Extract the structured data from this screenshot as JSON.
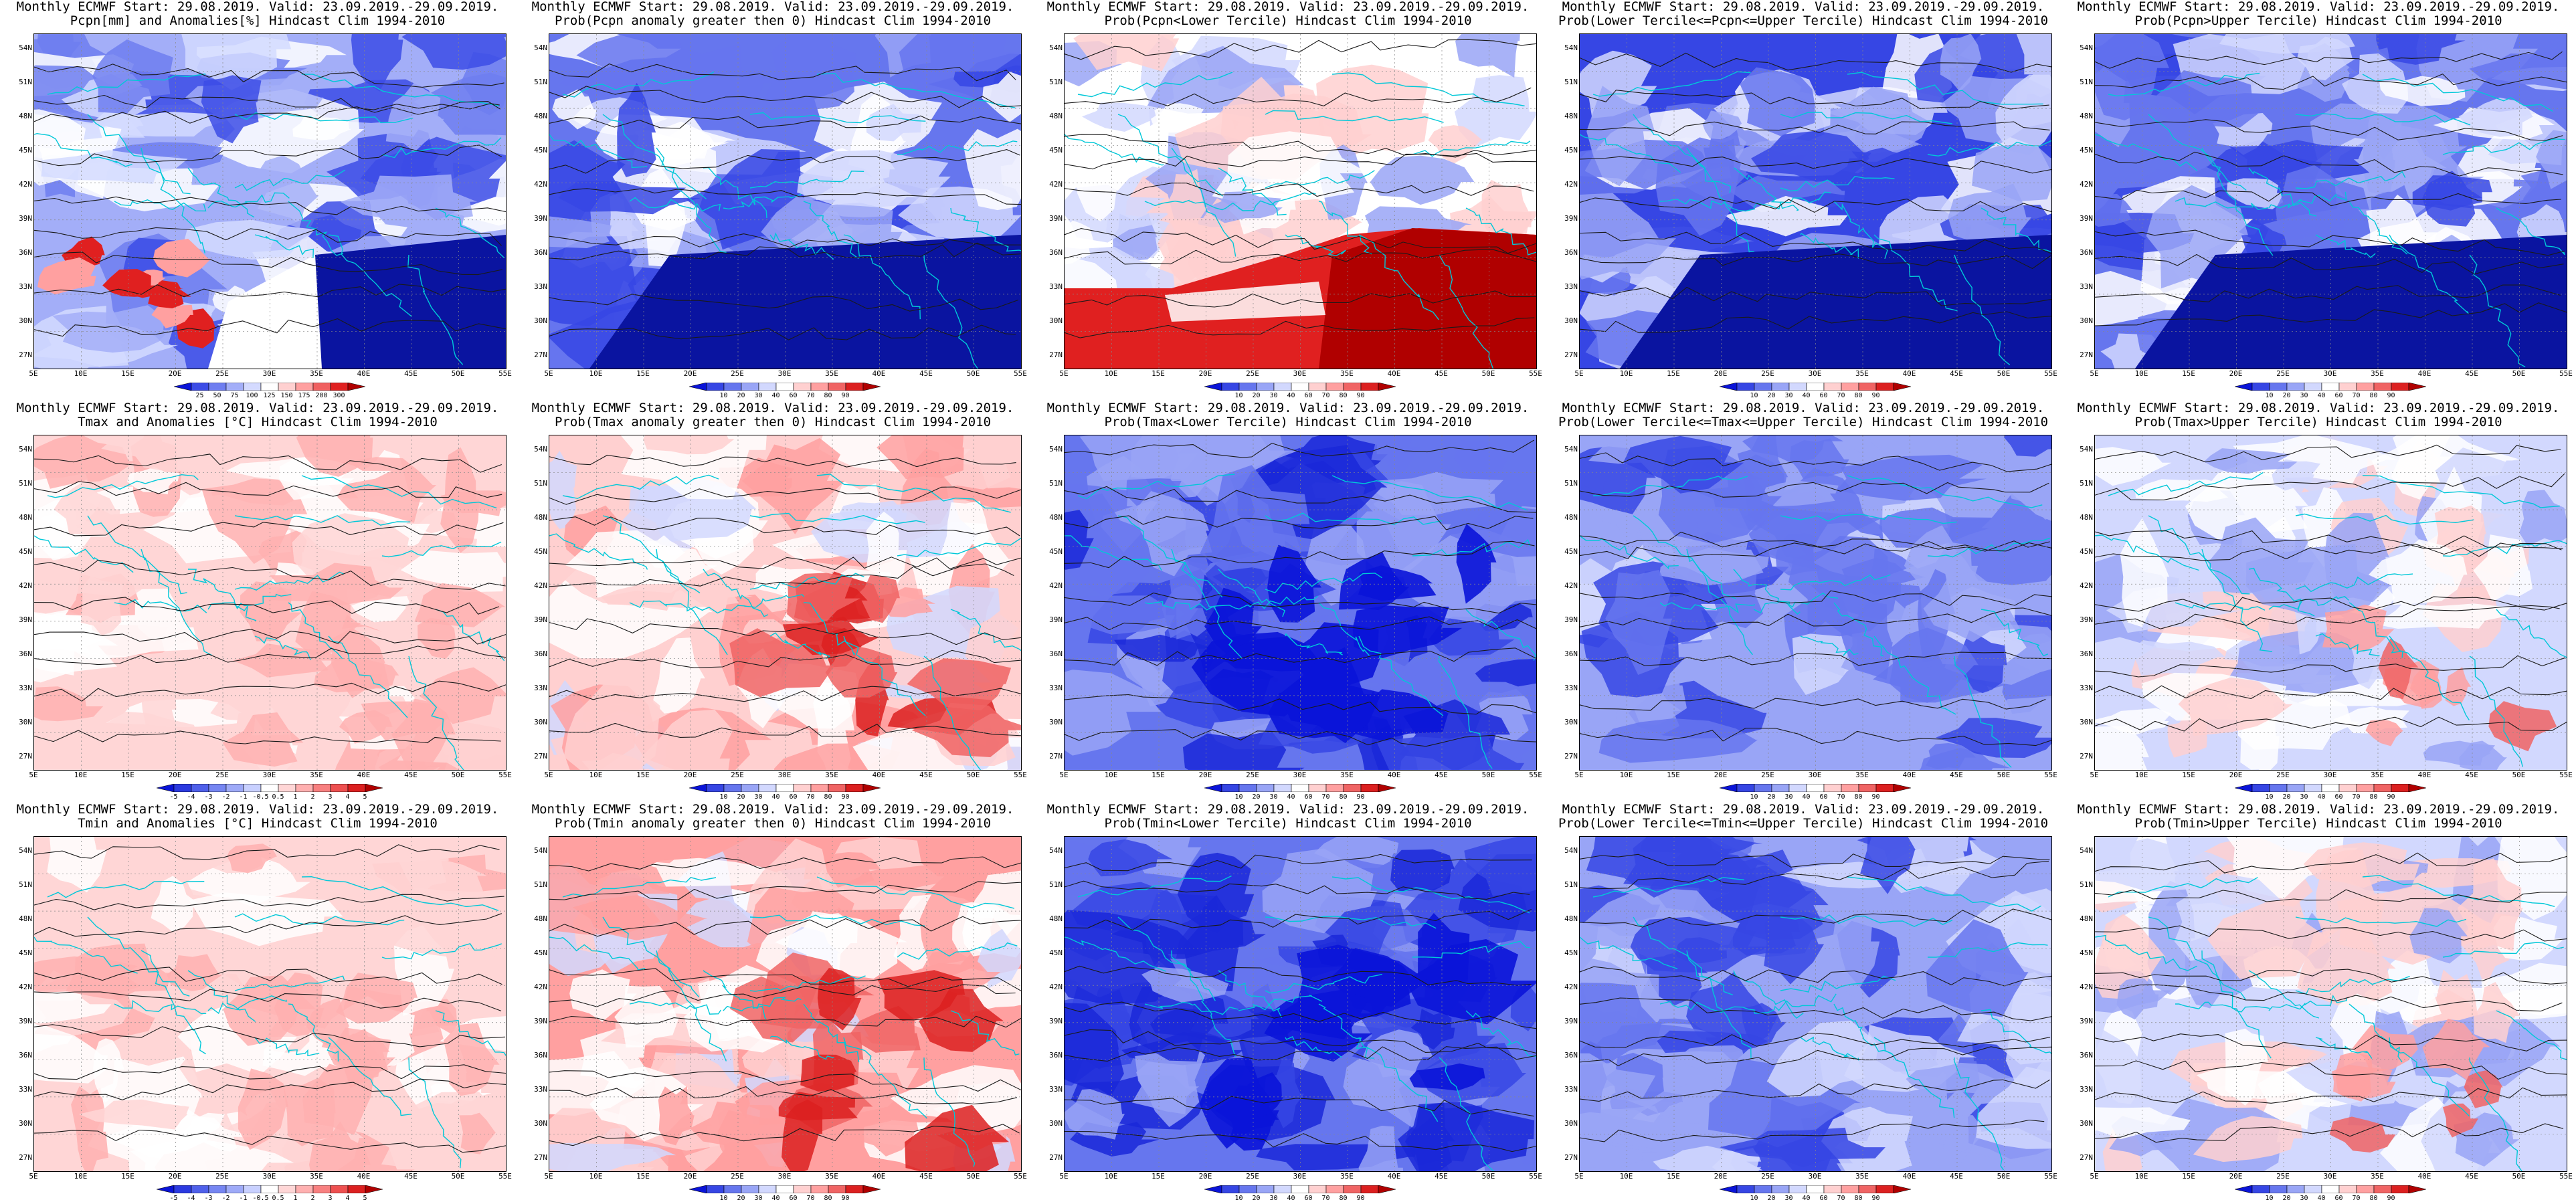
{
  "figure": {
    "latitude_ticks": [
      "54N",
      "51N",
      "48N",
      "45N",
      "42N",
      "39N",
      "36N",
      "33N",
      "30N",
      "27N"
    ],
    "longitude_ticks": [
      "5E",
      "10E",
      "15E",
      "20E",
      "25E",
      "30E",
      "35E",
      "40E",
      "45E",
      "50E",
      "55E"
    ],
    "colorbars": {
      "pcpn_anomaly": {
        "labels": [
          "25",
          "50",
          "75",
          "100",
          "125",
          "150",
          "175",
          "200",
          "300"
        ],
        "colors": [
          "#0a14d8",
          "#3c4ce6",
          "#6f7ef0",
          "#a3aef8",
          "#d4daff",
          "#ffffff",
          "#ffd0d0",
          "#ffa0a0",
          "#f06060",
          "#e02020",
          "#b00000"
        ]
      },
      "temp_anomaly": {
        "labels": [
          "-5",
          "-4",
          "-3",
          "-2",
          "-1",
          "-0.5",
          "0.5",
          "1",
          "2",
          "3",
          "4",
          "5"
        ],
        "colors": [
          "#0a14d8",
          "#2b3ae0",
          "#4f60ea",
          "#7686f2",
          "#9eaaf8",
          "#c8d0ff",
          "#ffffff",
          "#ffd6d6",
          "#ffb0b0",
          "#f88080",
          "#ee5050",
          "#dc2020",
          "#b00000"
        ]
      },
      "probability": {
        "labels": [
          "10",
          "20",
          "30",
          "40",
          "60",
          "70",
          "80",
          "90"
        ],
        "colors": [
          "#0a14d8",
          "#3646e4",
          "#6676ee",
          "#99a5f6",
          "#d2d8fe",
          "#ffffff",
          "#ffd0d0",
          "#ffa0a0",
          "#f06464",
          "#dc2020",
          "#b00000"
        ]
      }
    },
    "panels": [
      {
        "id": "p11",
        "title_line1": "Monthly ECMWF Start: 29.08.2019. Valid: 23.09.2019.-29.09.2019.",
        "title_line2": "Pcpn[mm] and Anomalies[%] Hindcast Clim 1994-2010",
        "colorbar": "pcpn_anomaly",
        "field_style": "pcpn-mixed",
        "dominant_color": "#a3aef8",
        "accent_color": "#e02020"
      },
      {
        "id": "p12",
        "title_line1": "Monthly ECMWF Start: 29.08.2019. Valid: 23.09.2019.-29.09.2019.",
        "title_line2": "Prob(Pcpn anomaly greater then 0) Hindcast Clim 1994-2010",
        "colorbar": "probability",
        "field_style": "blue-south-dark",
        "dominant_color": "#6676ee",
        "accent_color": "#0a14a0"
      },
      {
        "id": "p13",
        "title_line1": "Monthly ECMWF Start: 29.08.2019. Valid: 23.09.2019.-29.09.2019.",
        "title_line2": "Prob(Pcpn<Lower Tercile) Hindcast Clim 1994-2010",
        "colorbar": "probability",
        "field_style": "red-south",
        "dominant_color": "#ffffff",
        "accent_color": "#b00000"
      },
      {
        "id": "p14",
        "title_line1": "Monthly ECMWF Start: 29.08.2019. Valid: 23.09.2019.-29.09.2019.",
        "title_line2": "Prob(Lower Tercile<=Pcpn<=Upper Tercile) Hindcast Clim 1994-2010",
        "colorbar": "probability",
        "field_style": "blue-south-dark",
        "dominant_color": "#3646e4",
        "accent_color": "#0a14a0"
      },
      {
        "id": "p15",
        "title_line1": "Monthly ECMWF Start: 29.08.2019. Valid: 23.09.2019.-29.09.2019.",
        "title_line2": "Prob(Pcpn>Upper Tercile) Hindcast Clim 1994-2010",
        "colorbar": "probability",
        "field_style": "blue-south-dark",
        "dominant_color": "#6676ee",
        "accent_color": "#0a14a0"
      },
      {
        "id": "p21",
        "title_line1": "Monthly ECMWF Start: 29.08.2019. Valid: 23.09.2019.-29.09.2019.",
        "title_line2": "Tmax and Anomalies [°C] Hindcast Clim 1994-2010",
        "colorbar": "temp_anomaly",
        "field_style": "light-red",
        "dominant_color": "#ffd6d6",
        "accent_color": "#f88080"
      },
      {
        "id": "p22",
        "title_line1": "Monthly ECMWF Start: 29.08.2019. Valid: 23.09.2019.-29.09.2019.",
        "title_line2": "Prob(Tmax anomaly greater then 0) Hindcast Clim 1994-2010",
        "colorbar": "probability",
        "field_style": "red-southeast",
        "dominant_color": "#ffd0d0",
        "accent_color": "#dc2020"
      },
      {
        "id": "p23",
        "title_line1": "Monthly ECMWF Start: 29.08.2019. Valid: 23.09.2019.-29.09.2019.",
        "title_line2": "Prob(Tmax<Lower Tercile) Hindcast Clim 1994-2010",
        "colorbar": "probability",
        "field_style": "blue-deep",
        "dominant_color": "#6676ee",
        "accent_color": "#1a28d8"
      },
      {
        "id": "p24",
        "title_line1": "Monthly ECMWF Start: 29.08.2019. Valid: 23.09.2019.-29.09.2019.",
        "title_line2": "Prob(Lower Tercile<=Tmax<=Upper Tercile) Hindcast Clim 1994-2010",
        "colorbar": "probability",
        "field_style": "blue-medium",
        "dominant_color": "#99a5f6",
        "accent_color": "#3646e4"
      },
      {
        "id": "p25",
        "title_line1": "Monthly ECMWF Start: 29.08.2019. Valid: 23.09.2019.-29.09.2019.",
        "title_line2": "Prob(Tmax>Upper Tercile) Hindcast Clim 1994-2010",
        "colorbar": "probability",
        "field_style": "pale-mixed",
        "dominant_color": "#d2d8fe",
        "accent_color": "#f06464"
      },
      {
        "id": "p31",
        "title_line1": "Monthly ECMWF Start: 29.08.2019. Valid: 23.09.2019.-29.09.2019.",
        "title_line2": "Tmin and Anomalies [°C] Hindcast Clim 1994-2010",
        "colorbar": "temp_anomaly",
        "field_style": "light-red",
        "dominant_color": "#ffd6d6",
        "accent_color": "#f88080"
      },
      {
        "id": "p32",
        "title_line1": "Monthly ECMWF Start: 29.08.2019. Valid: 23.09.2019.-29.09.2019.",
        "title_line2": "Prob(Tmin anomaly greater then 0) Hindcast Clim 1994-2010",
        "colorbar": "probability",
        "field_style": "red-southeast",
        "dominant_color": "#ffa0a0",
        "accent_color": "#dc2020"
      },
      {
        "id": "p33",
        "title_line1": "Monthly ECMWF Start: 29.08.2019. Valid: 23.09.2019.-29.09.2019.",
        "title_line2": "Prob(Tmin<Lower Tercile) Hindcast Clim 1994-2010",
        "colorbar": "probability",
        "field_style": "blue-deep",
        "dominant_color": "#6676ee",
        "accent_color": "#0a14d8"
      },
      {
        "id": "p34",
        "title_line1": "Monthly ECMWF Start: 29.08.2019. Valid: 23.09.2019.-29.09.2019.",
        "title_line2": "Prob(Lower Tercile<=Tmin<=Upper Tercile) Hindcast Clim 1994-2010",
        "colorbar": "probability",
        "field_style": "blue-medium",
        "dominant_color": "#99a5f6",
        "accent_color": "#3646e4"
      },
      {
        "id": "p35",
        "title_line1": "Monthly ECMWF Start: 29.08.2019. Valid: 23.09.2019.-29.09.2019.",
        "title_line2": "Prob(Tmin>Upper Tercile) Hindcast Clim 1994-2010",
        "colorbar": "probability",
        "field_style": "pale-mixed",
        "dominant_color": "#d2d8fe",
        "accent_color": "#f06464"
      }
    ]
  }
}
